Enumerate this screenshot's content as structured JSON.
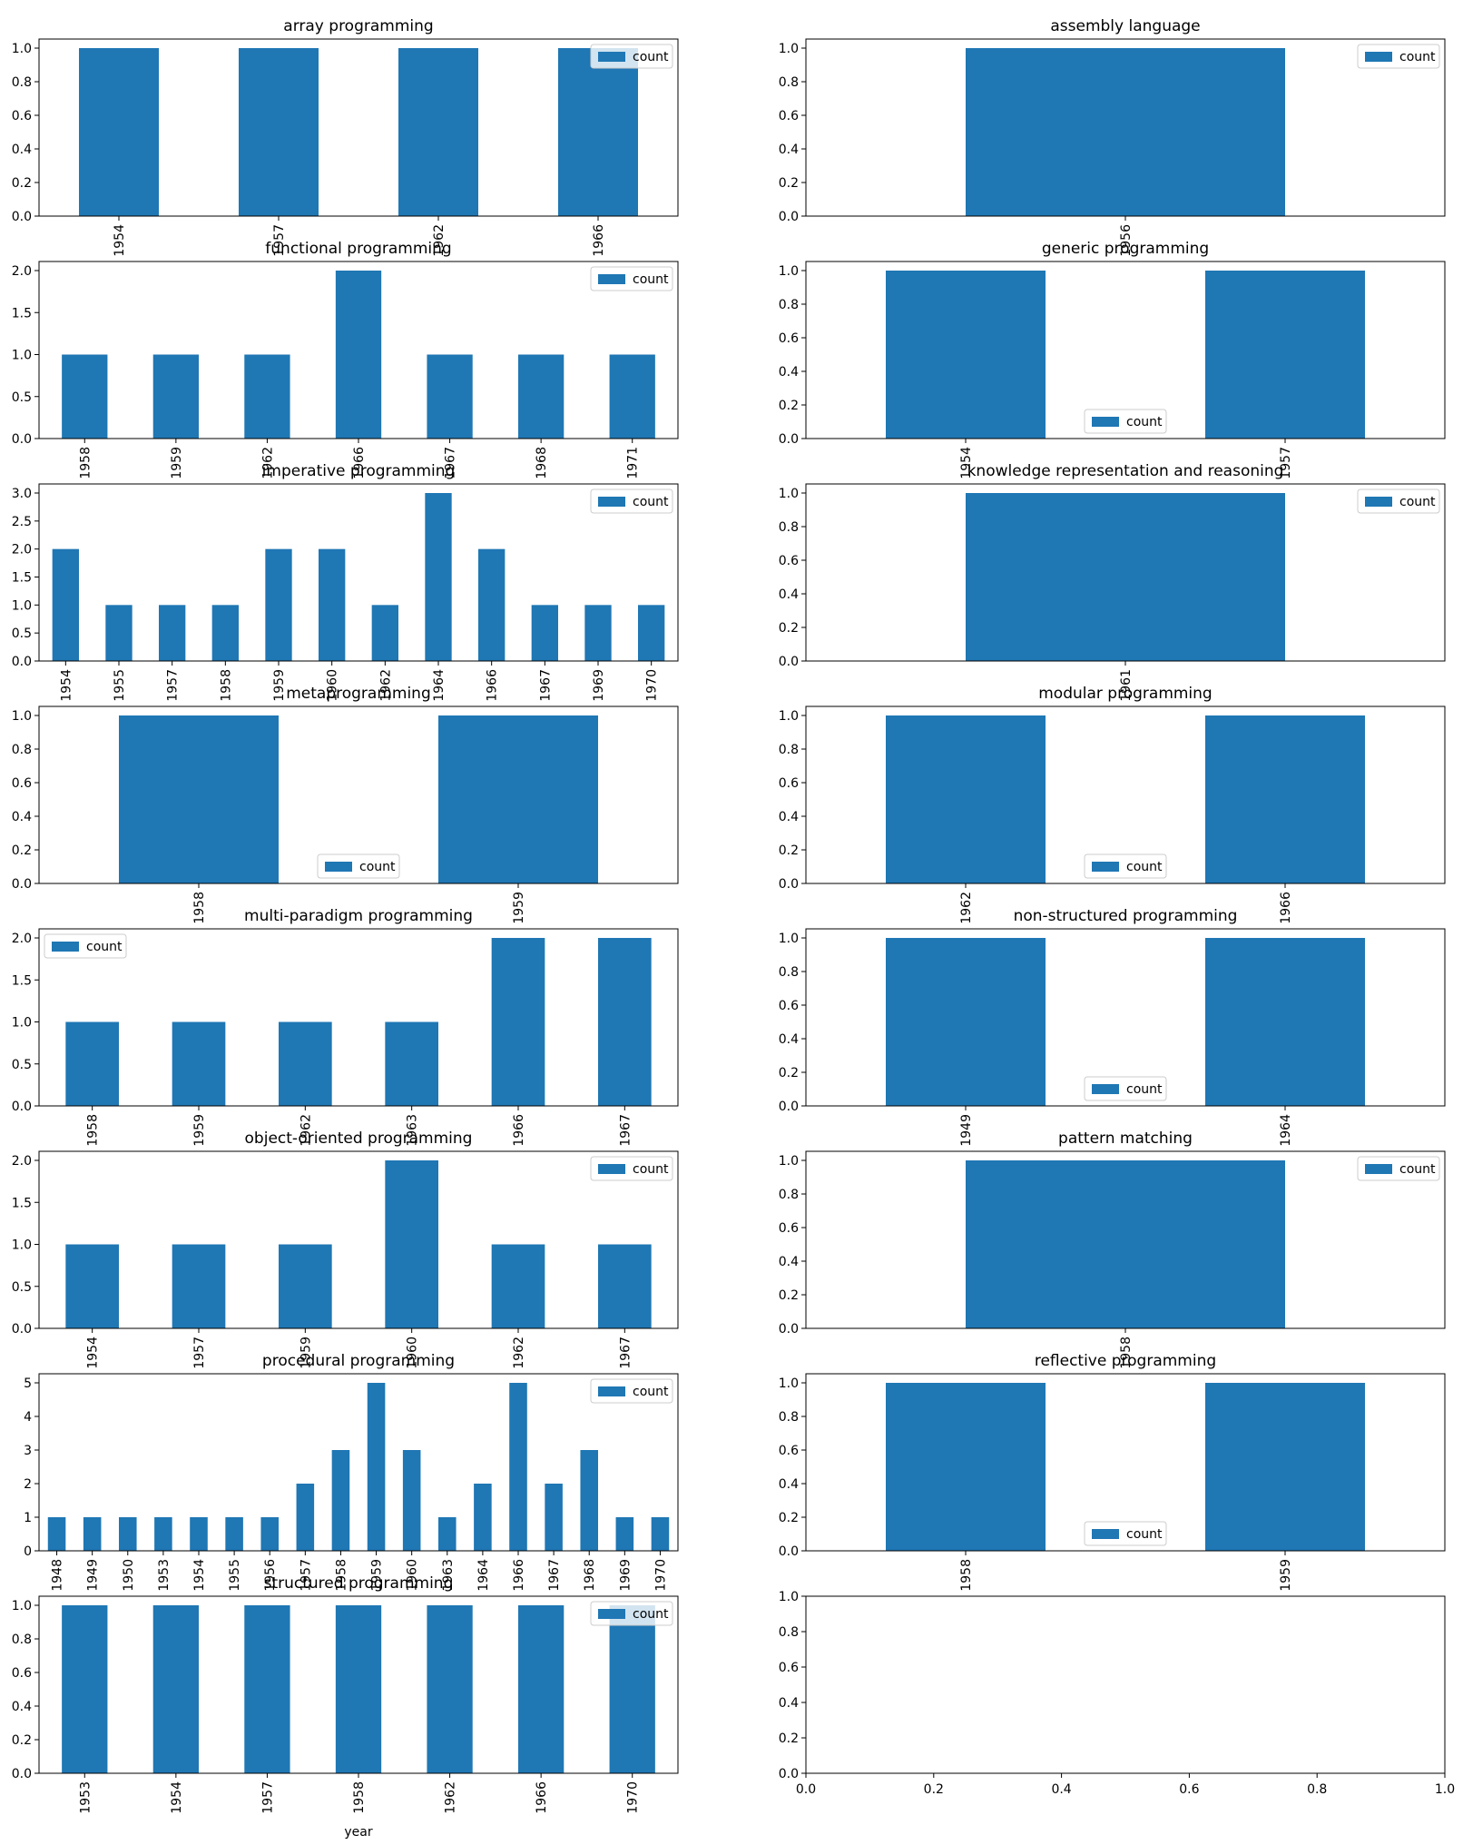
{
  "figure": {
    "bar_color": "#1f77b4",
    "legend_label": "count",
    "shared_xlabel": "year"
  },
  "chart_data": [
    {
      "type": "bar",
      "title": "array programming",
      "categories": [
        "1954",
        "1957",
        "1962",
        "1966"
      ],
      "series": [
        {
          "name": "count",
          "values": [
            1,
            1,
            1,
            1
          ]
        }
      ],
      "ylim": [
        0,
        1.0
      ],
      "yticks": [
        "0.0",
        "0.2",
        "0.4",
        "0.6",
        "0.8",
        "1.0"
      ],
      "legend": "upper right",
      "xlabel": "",
      "ylabel": ""
    },
    {
      "type": "bar",
      "title": "assembly language",
      "categories": [
        "1956"
      ],
      "series": [
        {
          "name": "count",
          "values": [
            1
          ]
        }
      ],
      "ylim": [
        0,
        1.0
      ],
      "yticks": [
        "0.0",
        "0.2",
        "0.4",
        "0.6",
        "0.8",
        "1.0"
      ],
      "legend": "upper right",
      "xlabel": "",
      "ylabel": ""
    },
    {
      "type": "bar",
      "title": "functional programming",
      "categories": [
        "1958",
        "1959",
        "1962",
        "1966",
        "1967",
        "1968",
        "1971"
      ],
      "series": [
        {
          "name": "count",
          "values": [
            1,
            1,
            1,
            2,
            1,
            1,
            1
          ]
        }
      ],
      "ylim": [
        0,
        2.0
      ],
      "yticks": [
        "0.0",
        "0.5",
        "1.0",
        "1.5",
        "2.0"
      ],
      "legend": "upper right",
      "xlabel": "",
      "ylabel": ""
    },
    {
      "type": "bar",
      "title": "generic programming",
      "categories": [
        "1954",
        "1957"
      ],
      "series": [
        {
          "name": "count",
          "values": [
            1,
            1
          ]
        }
      ],
      "ylim": [
        0,
        1.0
      ],
      "yticks": [
        "0.0",
        "0.2",
        "0.4",
        "0.6",
        "0.8",
        "1.0"
      ],
      "legend": "lower center",
      "xlabel": "",
      "ylabel": ""
    },
    {
      "type": "bar",
      "title": "imperative programming",
      "categories": [
        "1954",
        "1955",
        "1957",
        "1958",
        "1959",
        "1960",
        "1962",
        "1964",
        "1966",
        "1967",
        "1969",
        "1970"
      ],
      "series": [
        {
          "name": "count",
          "values": [
            2,
            1,
            1,
            1,
            2,
            2,
            1,
            3,
            2,
            1,
            1,
            1
          ]
        }
      ],
      "ylim": [
        0,
        3.0
      ],
      "yticks": [
        "0.0",
        "0.5",
        "1.0",
        "1.5",
        "2.0",
        "2.5",
        "3.0"
      ],
      "legend": "upper right",
      "xlabel": "",
      "ylabel": ""
    },
    {
      "type": "bar",
      "title": "knowledge representation and reasoning",
      "categories": [
        "1961"
      ],
      "series": [
        {
          "name": "count",
          "values": [
            1
          ]
        }
      ],
      "ylim": [
        0,
        1.0
      ],
      "yticks": [
        "0.0",
        "0.2",
        "0.4",
        "0.6",
        "0.8",
        "1.0"
      ],
      "legend": "upper right",
      "xlabel": "",
      "ylabel": ""
    },
    {
      "type": "bar",
      "title": "metaprogramming",
      "categories": [
        "1958",
        "1959"
      ],
      "series": [
        {
          "name": "count",
          "values": [
            1,
            1
          ]
        }
      ],
      "ylim": [
        0,
        1.0
      ],
      "yticks": [
        "0.0",
        "0.2",
        "0.4",
        "0.6",
        "0.8",
        "1.0"
      ],
      "legend": "lower center",
      "xlabel": "",
      "ylabel": ""
    },
    {
      "type": "bar",
      "title": "modular programming",
      "categories": [
        "1962",
        "1966"
      ],
      "series": [
        {
          "name": "count",
          "values": [
            1,
            1
          ]
        }
      ],
      "ylim": [
        0,
        1.0
      ],
      "yticks": [
        "0.0",
        "0.2",
        "0.4",
        "0.6",
        "0.8",
        "1.0"
      ],
      "legend": "lower center",
      "xlabel": "",
      "ylabel": ""
    },
    {
      "type": "bar",
      "title": "multi-paradigm programming",
      "categories": [
        "1958",
        "1959",
        "1962",
        "1963",
        "1966",
        "1967"
      ],
      "series": [
        {
          "name": "count",
          "values": [
            1,
            1,
            1,
            1,
            2,
            2
          ]
        }
      ],
      "ylim": [
        0,
        2.0
      ],
      "yticks": [
        "0.0",
        "0.5",
        "1.0",
        "1.5",
        "2.0"
      ],
      "legend": "upper left",
      "xlabel": "",
      "ylabel": ""
    },
    {
      "type": "bar",
      "title": "non-structured programming",
      "categories": [
        "1949",
        "1964"
      ],
      "series": [
        {
          "name": "count",
          "values": [
            1,
            1
          ]
        }
      ],
      "ylim": [
        0,
        1.0
      ],
      "yticks": [
        "0.0",
        "0.2",
        "0.4",
        "0.6",
        "0.8",
        "1.0"
      ],
      "legend": "lower center",
      "xlabel": "",
      "ylabel": ""
    },
    {
      "type": "bar",
      "title": "object-oriented programming",
      "categories": [
        "1954",
        "1957",
        "1959",
        "1960",
        "1962",
        "1967"
      ],
      "series": [
        {
          "name": "count",
          "values": [
            1,
            1,
            1,
            2,
            1,
            1
          ]
        }
      ],
      "ylim": [
        0,
        2.0
      ],
      "yticks": [
        "0.0",
        "0.5",
        "1.0",
        "1.5",
        "2.0"
      ],
      "legend": "upper right",
      "xlabel": "",
      "ylabel": ""
    },
    {
      "type": "bar",
      "title": "pattern matching",
      "categories": [
        "1958"
      ],
      "series": [
        {
          "name": "count",
          "values": [
            1
          ]
        }
      ],
      "ylim": [
        0,
        1.0
      ],
      "yticks": [
        "0.0",
        "0.2",
        "0.4",
        "0.6",
        "0.8",
        "1.0"
      ],
      "legend": "upper right",
      "xlabel": "",
      "ylabel": ""
    },
    {
      "type": "bar",
      "title": "procedural programming",
      "categories": [
        "1948",
        "1949",
        "1950",
        "1953",
        "1954",
        "1955",
        "1956",
        "1957",
        "1958",
        "1959",
        "1960",
        "1963",
        "1964",
        "1966",
        "1967",
        "1968",
        "1969",
        "1970"
      ],
      "series": [
        {
          "name": "count",
          "values": [
            1,
            1,
            1,
            1,
            1,
            1,
            1,
            2,
            3,
            5,
            3,
            1,
            2,
            5,
            2,
            3,
            1,
            1
          ]
        }
      ],
      "ylim": [
        0,
        5
      ],
      "yticks": [
        "0",
        "1",
        "2",
        "3",
        "4",
        "5"
      ],
      "legend": "upper right",
      "xlabel": "",
      "ylabel": ""
    },
    {
      "type": "bar",
      "title": "reflective programming",
      "categories": [
        "1958",
        "1959"
      ],
      "series": [
        {
          "name": "count",
          "values": [
            1,
            1
          ]
        }
      ],
      "ylim": [
        0,
        1.0
      ],
      "yticks": [
        "0.0",
        "0.2",
        "0.4",
        "0.6",
        "0.8",
        "1.0"
      ],
      "legend": "lower center",
      "xlabel": "",
      "ylabel": ""
    },
    {
      "type": "bar",
      "title": "structured programming",
      "categories": [
        "1953",
        "1954",
        "1957",
        "1958",
        "1962",
        "1966",
        "1970"
      ],
      "series": [
        {
          "name": "count",
          "values": [
            1,
            1,
            1,
            1,
            1,
            1,
            1
          ]
        }
      ],
      "ylim": [
        0,
        1.0
      ],
      "yticks": [
        "0.0",
        "0.2",
        "0.4",
        "0.6",
        "0.8",
        "1.0"
      ],
      "legend": "upper right",
      "xlabel": "year",
      "ylabel": ""
    },
    {
      "type": "empty",
      "title": "",
      "categories": [],
      "series": [],
      "xlim": [
        0,
        1.0
      ],
      "ylim": [
        0,
        1.0
      ],
      "xticks": [
        "0.0",
        "0.2",
        "0.4",
        "0.6",
        "0.8",
        "1.0"
      ],
      "yticks": [
        "0.0",
        "0.2",
        "0.4",
        "0.6",
        "0.8",
        "1.0"
      ],
      "legend": "",
      "xlabel": "",
      "ylabel": ""
    }
  ]
}
